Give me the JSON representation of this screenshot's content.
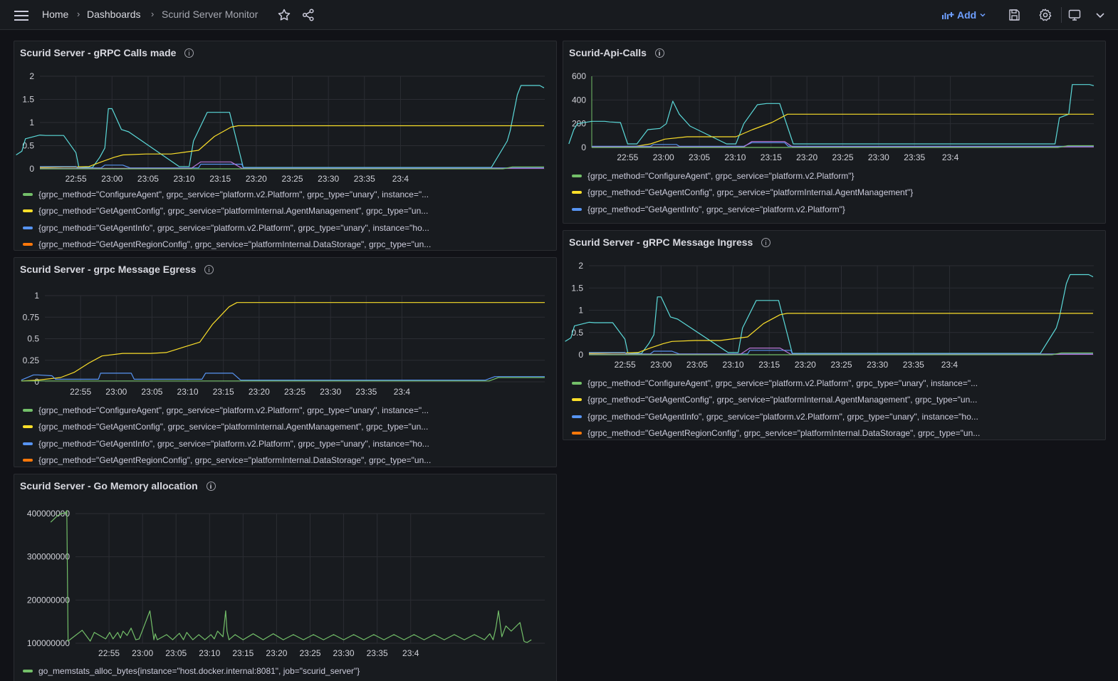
{
  "breadcrumb": {
    "home": "Home",
    "dashboards": "Dashboards",
    "current": "Scurid Server Monitor"
  },
  "toolbar": {
    "add_label": "Add"
  },
  "icons": [
    "menu-icon",
    "star-icon",
    "share-icon",
    "add-chart-icon",
    "chevron-down-icon",
    "save-icon",
    "gear-icon",
    "tv-icon"
  ],
  "colors": {
    "green": "#73bf69",
    "yellow": "#fade2a",
    "blue": "#5794f2",
    "orange": "#ff780a",
    "cyan": "#5bd9d9",
    "purple": "#b877d9",
    "accent": "#6e9fff"
  },
  "panels": {
    "calls": {
      "title": "Scurid Server - gRPC Calls made",
      "legend": [
        {
          "label": "{grpc_method=\"ConfigureAgent\", grpc_service=\"platform.v2.Platform\", grpc_type=\"unary\", instance=\"...",
          "color": "#73bf69"
        },
        {
          "label": "{grpc_method=\"GetAgentConfig\", grpc_service=\"platformInternal.AgentManagement\", grpc_type=\"un...",
          "color": "#fade2a"
        },
        {
          "label": "{grpc_method=\"GetAgentInfo\", grpc_service=\"platform.v2.Platform\", grpc_type=\"unary\", instance=\"ho...",
          "color": "#5794f2"
        },
        {
          "label": "{grpc_method=\"GetAgentRegionConfig\", grpc_service=\"platformInternal.DataStorage\", grpc_type=\"un...",
          "color": "#ff780a"
        }
      ]
    },
    "api": {
      "title": "Scurid-Api-Calls",
      "legend": [
        {
          "label": "{grpc_method=\"ConfigureAgent\", grpc_service=\"platform.v2.Platform\"}",
          "color": "#73bf69"
        },
        {
          "label": "{grpc_method=\"GetAgentConfig\", grpc_service=\"platformInternal.AgentManagement\"}",
          "color": "#fade2a"
        },
        {
          "label": "{grpc_method=\"GetAgentInfo\", grpc_service=\"platform.v2.Platform\"}",
          "color": "#5794f2"
        }
      ]
    },
    "egress": {
      "title": "Scurid Server - grpc Message Egress",
      "legend": [
        {
          "label": "{grpc_method=\"ConfigureAgent\", grpc_service=\"platform.v2.Platform\", grpc_type=\"unary\", instance=\"...",
          "color": "#73bf69"
        },
        {
          "label": "{grpc_method=\"GetAgentConfig\", grpc_service=\"platformInternal.AgentManagement\", grpc_type=\"un...",
          "color": "#fade2a"
        },
        {
          "label": "{grpc_method=\"GetAgentInfo\", grpc_service=\"platform.v2.Platform\", grpc_type=\"unary\", instance=\"ho...",
          "color": "#5794f2"
        },
        {
          "label": "{grpc_method=\"GetAgentRegionConfig\", grpc_service=\"platformInternal.DataStorage\", grpc_type=\"un...",
          "color": "#ff780a"
        }
      ]
    },
    "ingress": {
      "title": "Scurid Server - gRPC Message Ingress",
      "legend": [
        {
          "label": "{grpc_method=\"ConfigureAgent\", grpc_service=\"platform.v2.Platform\", grpc_type=\"unary\", instance=\"...",
          "color": "#73bf69"
        },
        {
          "label": "{grpc_method=\"GetAgentConfig\", grpc_service=\"platformInternal.AgentManagement\", grpc_type=\"un...",
          "color": "#fade2a"
        },
        {
          "label": "{grpc_method=\"GetAgentInfo\", grpc_service=\"platform.v2.Platform\", grpc_type=\"unary\", instance=\"ho...",
          "color": "#5794f2"
        },
        {
          "label": "{grpc_method=\"GetAgentRegionConfig\", grpc_service=\"platformInternal.DataStorage\", grpc_type=\"un...",
          "color": "#ff780a"
        }
      ]
    },
    "memory": {
      "title": "Scurid Server - Go Memory allocation",
      "legend": [
        {
          "label": "go_memstats_alloc_bytes{instance=\"host.docker.internal:8081\", job=\"scurid_server\"}",
          "color": "#73bf69"
        }
      ]
    }
  },
  "chart_data": [
    {
      "id": "calls",
      "type": "line",
      "x_ticks": [
        "22:55",
        "23:00",
        "23:05",
        "23:10",
        "23:15",
        "23:20",
        "23:25",
        "23:30",
        "23:35",
        "23:4"
      ],
      "y_ticks": [
        "0",
        "0.5",
        "1",
        "1.5",
        "2"
      ],
      "ylim": [
        0,
        2
      ],
      "grid": true,
      "legend": "bottom",
      "series": [
        {
          "color": "#5bd9d9",
          "x": [
            -3.3,
            -2.5,
            -2,
            0,
            0.8,
            1.8,
            3.3,
            5,
            5.4,
            6.2,
            7.3,
            8.3,
            9,
            9.5,
            10,
            11.3,
            12.3,
            19.3,
            20.7,
            21.3,
            23.2,
            24.3,
            26.3,
            28.2,
            62.6,
            64.8,
            65.2,
            66.2,
            66.7,
            69.3,
            69.9
          ],
          "y": [
            0.3,
            0.38,
            0.65,
            0.73,
            0.72,
            0.72,
            0.72,
            0.35,
            0.04,
            0.03,
            0.03,
            0.25,
            0.45,
            1.3,
            1.3,
            0.85,
            0.8,
            0.05,
            0.05,
            0.6,
            1.22,
            1.22,
            1.22,
            0.03,
            0.03,
            0.6,
            0.82,
            1.6,
            1.8,
            1.8,
            1.75
          ]
        },
        {
          "color": "#fade2a",
          "x": [
            0,
            3.3,
            5,
            6.8,
            8.5,
            10.3,
            11.5,
            14.7,
            18.2,
            22,
            24.2,
            26.5,
            27.5,
            69.9
          ],
          "y": [
            0.03,
            0.04,
            0.04,
            0.05,
            0.15,
            0.25,
            0.3,
            0.32,
            0.32,
            0.4,
            0.7,
            0.9,
            0.93,
            0.93
          ]
        },
        {
          "color": "#5794f2",
          "x": [
            0,
            5,
            5.2,
            8.5,
            9,
            11.5,
            12.5,
            22,
            22.3,
            28,
            28.2,
            69.9
          ],
          "y": [
            0.05,
            0.05,
            0.02,
            0.02,
            0.08,
            0.08,
            0.02,
            0.02,
            0.1,
            0.1,
            0.02,
            0.02
          ]
        },
        {
          "color": "#b877d9",
          "x": [
            0,
            21,
            22.3,
            26.5,
            28,
            69.9
          ],
          "y": [
            0.01,
            0.01,
            0.15,
            0.15,
            0.01,
            0.01
          ]
        },
        {
          "color": "#73bf69",
          "x": [
            0,
            64.2,
            65.5,
            69.9
          ],
          "y": [
            0,
            0,
            0.04,
            0.04
          ]
        }
      ]
    },
    {
      "id": "api",
      "type": "line",
      "x_ticks": [
        "22:55",
        "23:00",
        "23:05",
        "23:10",
        "23:15",
        "23:20",
        "23:25",
        "23:30",
        "23:35",
        "23:4"
      ],
      "y_ticks": [
        "0",
        "200",
        "400",
        "600"
      ],
      "ylim": [
        0,
        600
      ],
      "grid": true,
      "legend": "bottom",
      "series": [
        {
          "color": "#5bd9d9",
          "x": [
            -3.2,
            -2.5,
            -2,
            0,
            1.2,
            1.8,
            2.5,
            4,
            5,
            6.3,
            7.8,
            9.5,
            10.4,
            11.3,
            12.2,
            13.7,
            18.8,
            20.1,
            21.2,
            23.1,
            24.4,
            26.2,
            28.1,
            64.6,
            65.2,
            66.5,
            67,
            69.4,
            70
          ],
          "y": [
            30,
            150,
            200,
            220,
            220,
            220,
            215,
            210,
            30,
            30,
            150,
            160,
            200,
            390,
            280,
            180,
            30,
            30,
            200,
            360,
            370,
            370,
            30,
            30,
            250,
            280,
            530,
            530,
            520
          ]
        },
        {
          "color": "#fade2a",
          "x": [
            0,
            3.5,
            6.2,
            8.2,
            10.2,
            13.3,
            16.8,
            20.1,
            22.4,
            25.1,
            27.3,
            70
          ],
          "y": [
            5,
            8,
            10,
            30,
            70,
            90,
            90,
            90,
            150,
            210,
            280,
            280
          ]
        },
        {
          "color": "#5794f2",
          "x": [
            0,
            5.4,
            8.2,
            8.6,
            11.8,
            12.2,
            21.2,
            22.3,
            26.9,
            27.4,
            70
          ],
          "y": [
            10,
            10,
            10,
            25,
            25,
            10,
            10,
            40,
            40,
            10,
            10
          ]
        },
        {
          "color": "#b877d9",
          "x": [
            0,
            21.2,
            22.3,
            26.9,
            28,
            70
          ],
          "y": [
            5,
            5,
            50,
            50,
            5,
            5
          ]
        },
        {
          "color": "#73bf69",
          "x": [
            0,
            65,
            66.4,
            70
          ],
          "y": [
            0,
            0,
            15,
            15
          ]
        }
      ]
    },
    {
      "id": "egress",
      "type": "line",
      "x_ticks": [
        "22:55",
        "23:00",
        "23:05",
        "23:10",
        "23:15",
        "23:20",
        "23:25",
        "23:30",
        "23:35",
        "23:4"
      ],
      "y_ticks": [
        "0",
        "0.25",
        "0.5",
        "0.75",
        "1"
      ],
      "ylim": [
        0,
        1
      ],
      "grid": true,
      "legend": "bottom",
      "series": [
        {
          "color": "#fade2a",
          "x": [
            -3.3,
            -1,
            2.2,
            4.1,
            6.2,
            8,
            10.9,
            14.8,
            17,
            21.7,
            23.5,
            25.8,
            26.9,
            70
          ],
          "y": [
            0.01,
            0.02,
            0.05,
            0.11,
            0.22,
            0.3,
            0.33,
            0.33,
            0.34,
            0.46,
            0.67,
            0.87,
            0.92,
            0.92
          ]
        },
        {
          "color": "#5794f2",
          "x": [
            -3.3,
            -1.6,
            -1,
            1,
            1.5,
            7.5,
            7.8,
            12.1,
            12.5,
            22,
            22.5,
            26.3,
            27.4,
            61.7,
            63,
            70
          ],
          "y": [
            0.02,
            0.08,
            0.08,
            0.07,
            0.03,
            0.03,
            0.1,
            0.1,
            0.03,
            0.03,
            0.1,
            0.1,
            0.02,
            0.02,
            0.06,
            0.06
          ]
        },
        {
          "color": "#73bf69",
          "x": [
            -3.3,
            62.2,
            63.5,
            70
          ],
          "y": [
            0.01,
            0.01,
            0.05,
            0.05
          ]
        }
      ]
    },
    {
      "id": "ingress",
      "type": "line",
      "x_ticks": [
        "22:55",
        "23:00",
        "23:05",
        "23:10",
        "23:15",
        "23:20",
        "23:25",
        "23:30",
        "23:35",
        "23:4"
      ],
      "y_ticks": [
        "0",
        "0.5",
        "1",
        "1.5",
        "2"
      ],
      "ylim": [
        0,
        2
      ],
      "grid": true,
      "legend": "bottom",
      "series": [
        {
          "color": "#5bd9d9",
          "x": [
            -3.3,
            -2.5,
            -2,
            0,
            0.8,
            1.8,
            3.3,
            5,
            5.4,
            6.2,
            7.3,
            8.3,
            9,
            9.5,
            10,
            11.3,
            12.3,
            19.3,
            20.7,
            21.3,
            23.2,
            24.3,
            26.3,
            28.2,
            62.6,
            64.8,
            65.2,
            66.2,
            66.7,
            69.3,
            69.9
          ],
          "y": [
            0.3,
            0.38,
            0.65,
            0.73,
            0.72,
            0.72,
            0.72,
            0.35,
            0.04,
            0.03,
            0.03,
            0.25,
            0.45,
            1.3,
            1.3,
            0.85,
            0.8,
            0.05,
            0.05,
            0.6,
            1.22,
            1.22,
            1.22,
            0.03,
            0.03,
            0.6,
            0.82,
            1.6,
            1.8,
            1.8,
            1.75
          ]
        },
        {
          "color": "#fade2a",
          "x": [
            0,
            3.3,
            5,
            6.8,
            8.5,
            10.3,
            11.5,
            14.7,
            18.2,
            22,
            24.2,
            26.5,
            27.5,
            69.9
          ],
          "y": [
            0.03,
            0.04,
            0.04,
            0.05,
            0.15,
            0.25,
            0.3,
            0.32,
            0.32,
            0.4,
            0.7,
            0.9,
            0.93,
            0.93
          ]
        },
        {
          "color": "#5794f2",
          "x": [
            0,
            5,
            5.2,
            8.5,
            9,
            11.5,
            12.5,
            22,
            22.3,
            28,
            28.2,
            69.9
          ],
          "y": [
            0.05,
            0.05,
            0.02,
            0.02,
            0.08,
            0.08,
            0.02,
            0.02,
            0.1,
            0.1,
            0.02,
            0.02
          ]
        },
        {
          "color": "#b877d9",
          "x": [
            0,
            21,
            22.3,
            26.5,
            28,
            69.9
          ],
          "y": [
            0.01,
            0.01,
            0.15,
            0.15,
            0.01,
            0.01
          ]
        },
        {
          "color": "#73bf69",
          "x": [
            0,
            64.2,
            65.5,
            69.9
          ],
          "y": [
            0,
            0,
            0.04,
            0.04
          ]
        }
      ]
    },
    {
      "id": "memory",
      "type": "line",
      "x_ticks": [
        "22:55",
        "23:00",
        "23:05",
        "23:10",
        "23:15",
        "23:20",
        "23:25",
        "23:30",
        "23:35",
        "23:4"
      ],
      "y_ticks": [
        "100000000",
        "200000000",
        "300000000",
        "400000000"
      ],
      "ylim": [
        100000000,
        400000000
      ],
      "grid": true,
      "legend": "bottom",
      "series": [
        {
          "color": "#73bf69",
          "x": [
            -3.7,
            -2.7,
            -2.1,
            -1.5,
            -1.3,
            -1.1,
            1,
            2.2,
            2.8,
            4.5,
            5.1,
            5.6,
            6.3,
            6.7,
            7.1,
            7.7,
            8.3,
            9,
            9.5,
            10,
            11.1,
            11.7,
            11.9,
            12.2,
            13.6,
            14.5,
            15.5,
            16.1,
            16.6,
            17.5,
            18.4,
            19.3,
            20.2,
            20.7,
            21.2,
            22,
            22.4,
            22.6,
            22.9,
            23.8,
            25,
            26.5,
            28,
            29.5,
            31,
            32.5,
            34,
            35.5,
            37,
            38.5,
            40,
            41.5,
            43,
            44.5,
            46,
            47.5,
            49,
            50.5,
            52,
            53.5,
            55,
            56.5,
            58,
            59.5,
            61,
            61.8,
            62.3,
            62.7,
            63.1,
            63.6,
            64.2,
            65,
            66.3,
            66.9,
            67.1,
            67.4,
            68
          ],
          "y": [
            380000000,
            395000000,
            400000000,
            402000000,
            407000000,
            105000000,
            130000000,
            105000000,
            125000000,
            110000000,
            125000000,
            110000000,
            125000000,
            112000000,
            128000000,
            118000000,
            135000000,
            108000000,
            110000000,
            130000000,
            175000000,
            108000000,
            122000000,
            108000000,
            120000000,
            108000000,
            123000000,
            108000000,
            125000000,
            108000000,
            120000000,
            108000000,
            120000000,
            110000000,
            128000000,
            115000000,
            175000000,
            128000000,
            108000000,
            120000000,
            108000000,
            122000000,
            108000000,
            122000000,
            108000000,
            120000000,
            108000000,
            120000000,
            108000000,
            120000000,
            108000000,
            120000000,
            108000000,
            120000000,
            108000000,
            120000000,
            108000000,
            120000000,
            108000000,
            120000000,
            108000000,
            120000000,
            108000000,
            120000000,
            108000000,
            122000000,
            108000000,
            135000000,
            175000000,
            115000000,
            140000000,
            128000000,
            148000000,
            105000000,
            103000000,
            102000000,
            108000000
          ]
        }
      ]
    }
  ]
}
